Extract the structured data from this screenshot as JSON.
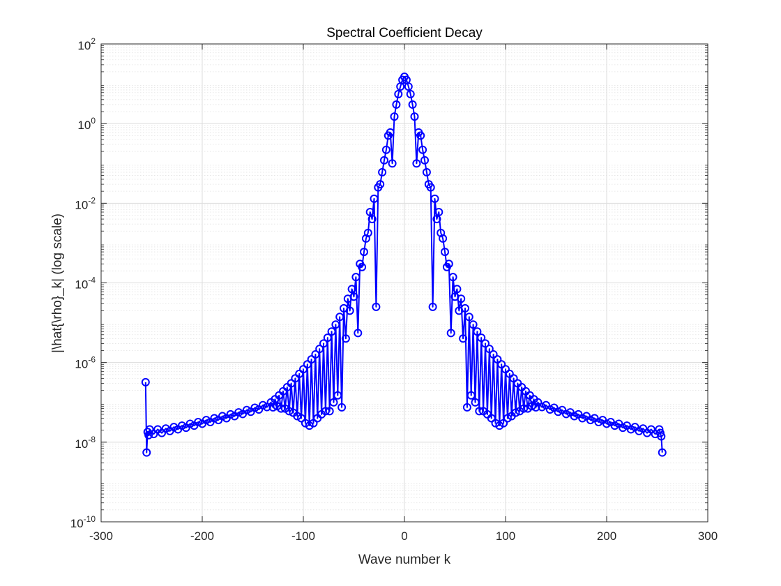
{
  "chart_data": {
    "type": "line",
    "title": "Spectral Coefficient Decay",
    "xlabel": "Wave number k",
    "ylabel": "|\\hat{\\rho}_k| (log scale)",
    "xlim": [
      -300,
      300
    ],
    "ylim": [
      1e-10,
      100
    ],
    "y_scale": "log",
    "grid": true,
    "minor_grid": true,
    "x_ticks": [
      {
        "value": -300,
        "label": "-300"
      },
      {
        "value": -200,
        "label": "-200"
      },
      {
        "value": -100,
        "label": "-100"
      },
      {
        "value": 0,
        "label": "0"
      },
      {
        "value": 100,
        "label": "100"
      },
      {
        "value": 200,
        "label": "200"
      },
      {
        "value": 300,
        "label": "300"
      }
    ],
    "y_ticks": [
      {
        "exp": 2,
        "base": "10",
        "sup": "2"
      },
      {
        "exp": 0,
        "base": "10",
        "sup": "0"
      },
      {
        "exp": -2,
        "base": "10",
        "sup": "-2"
      },
      {
        "exp": -4,
        "base": "10",
        "sup": "-4"
      },
      {
        "exp": -6,
        "base": "10",
        "sup": "-6"
      },
      {
        "exp": -8,
        "base": "10",
        "sup": "-8"
      },
      {
        "exp": -10,
        "base": "10",
        "sup": "-10"
      }
    ],
    "colors": {
      "series": "#0000ff",
      "grid": "#dcdcdc",
      "axis": "#262626"
    },
    "series": [
      {
        "marker": "circle",
        "points": [
          [
            -256,
            3.2e-07
          ],
          [
            -255,
            5.5e-09
          ],
          [
            -254,
            1.8e-08
          ],
          [
            -253,
            1.5e-08
          ],
          [
            -252,
            2.1e-08
          ],
          [
            -248,
            1.6e-08
          ],
          [
            -244,
            2.1e-08
          ],
          [
            -240,
            1.7e-08
          ],
          [
            -236,
            2.2e-08
          ],
          [
            -232,
            1.9e-08
          ],
          [
            -228,
            2.4e-08
          ],
          [
            -224,
            2.1e-08
          ],
          [
            -220,
            2.6e-08
          ],
          [
            -216,
            2.3e-08
          ],
          [
            -212,
            2.9e-08
          ],
          [
            -208,
            2.6e-08
          ],
          [
            -204,
            3.2e-08
          ],
          [
            -200,
            2.9e-08
          ],
          [
            -196,
            3.6e-08
          ],
          [
            -192,
            3.2e-08
          ],
          [
            -188,
            4e-08
          ],
          [
            -184,
            3.6e-08
          ],
          [
            -180,
            4.5e-08
          ],
          [
            -176,
            4e-08
          ],
          [
            -172,
            5e-08
          ],
          [
            -168,
            4.5e-08
          ],
          [
            -164,
            5.6e-08
          ],
          [
            -160,
            5.1e-08
          ],
          [
            -156,
            6.4e-08
          ],
          [
            -152,
            5.8e-08
          ],
          [
            -148,
            7.3e-08
          ],
          [
            -144,
            6.6e-08
          ],
          [
            -140,
            8.5e-08
          ],
          [
            -136,
            7.6e-08
          ],
          [
            -132,
            1e-07
          ],
          [
            -130,
            7.5e-08
          ],
          [
            -128,
            1.2e-07
          ],
          [
            -126,
            8e-08
          ],
          [
            -124,
            1.5e-07
          ],
          [
            -122,
            7e-08
          ],
          [
            -120,
            1.9e-07
          ],
          [
            -118,
            7e-08
          ],
          [
            -116,
            2.4e-07
          ],
          [
            -114,
            6e-08
          ],
          [
            -112,
            3e-07
          ],
          [
            -110,
            5.5e-08
          ],
          [
            -108,
            4e-07
          ],
          [
            -106,
            4.5e-08
          ],
          [
            -104,
            5.2e-07
          ],
          [
            -102,
            4e-08
          ],
          [
            -100,
            6.8e-07
          ],
          [
            -98,
            3e-08
          ],
          [
            -96,
            9e-07
          ],
          [
            -94,
            2.6e-08
          ],
          [
            -92,
            1.2e-06
          ],
          [
            -90,
            3e-08
          ],
          [
            -88,
            1.6e-06
          ],
          [
            -86,
            4e-08
          ],
          [
            -84,
            2.2e-06
          ],
          [
            -82,
            5e-08
          ],
          [
            -80,
            3e-06
          ],
          [
            -78,
            6e-08
          ],
          [
            -76,
            4.2e-06
          ],
          [
            -74,
            6e-08
          ],
          [
            -72,
            6e-06
          ],
          [
            -70,
            1e-07
          ],
          [
            -68,
            9e-06
          ],
          [
            -66,
            1.5e-07
          ],
          [
            -64,
            1.4e-05
          ],
          [
            -62,
            7.5e-08
          ],
          [
            -60,
            2.3e-05
          ],
          [
            -58,
            4e-06
          ],
          [
            -56,
            4e-05
          ],
          [
            -54,
            2e-05
          ],
          [
            -52,
            7e-05
          ],
          [
            -50,
            4.5e-05
          ],
          [
            -48,
            0.00014
          ],
          [
            -46,
            5.5e-06
          ],
          [
            -44,
            0.0003
          ],
          [
            -42,
            0.00025
          ],
          [
            -40,
            0.0006
          ],
          [
            -38,
            0.0013
          ],
          [
            -36,
            0.0018
          ],
          [
            -34,
            0.006
          ],
          [
            -32,
            0.004
          ],
          [
            -30,
            0.013
          ],
          [
            -28,
            2.5e-05
          ],
          [
            -26,
            0.025
          ],
          [
            -24,
            0.03
          ],
          [
            -22,
            0.06
          ],
          [
            -20,
            0.12
          ],
          [
            -18,
            0.22
          ],
          [
            -16,
            0.5
          ],
          [
            -14,
            0.6
          ],
          [
            -12,
            0.1
          ],
          [
            -10,
            1.5
          ],
          [
            -8,
            3.0
          ],
          [
            -6,
            5.5
          ],
          [
            -4,
            8.5
          ],
          [
            -2,
            12.5
          ],
          [
            0,
            15
          ],
          [
            2,
            12.5
          ],
          [
            4,
            8.5
          ],
          [
            6,
            5.5
          ],
          [
            8,
            3.0
          ],
          [
            10,
            1.5
          ],
          [
            12,
            0.1
          ],
          [
            14,
            0.6
          ],
          [
            16,
            0.5
          ],
          [
            18,
            0.22
          ],
          [
            20,
            0.12
          ],
          [
            22,
            0.06
          ],
          [
            24,
            0.03
          ],
          [
            26,
            0.025
          ],
          [
            28,
            2.5e-05
          ],
          [
            30,
            0.013
          ],
          [
            32,
            0.004
          ],
          [
            34,
            0.006
          ],
          [
            36,
            0.0018
          ],
          [
            38,
            0.0013
          ],
          [
            40,
            0.0006
          ],
          [
            42,
            0.00025
          ],
          [
            44,
            0.0003
          ],
          [
            46,
            5.5e-06
          ],
          [
            48,
            0.00014
          ],
          [
            50,
            4.5e-05
          ],
          [
            52,
            7e-05
          ],
          [
            54,
            2e-05
          ],
          [
            56,
            4e-05
          ],
          [
            58,
            4e-06
          ],
          [
            60,
            2.3e-05
          ],
          [
            62,
            7.5e-08
          ],
          [
            64,
            1.4e-05
          ],
          [
            66,
            1.5e-07
          ],
          [
            68,
            9e-06
          ],
          [
            70,
            1e-07
          ],
          [
            72,
            6e-06
          ],
          [
            74,
            6e-08
          ],
          [
            76,
            4.2e-06
          ],
          [
            78,
            6e-08
          ],
          [
            80,
            3e-06
          ],
          [
            82,
            5e-08
          ],
          [
            84,
            2.2e-06
          ],
          [
            86,
            4e-08
          ],
          [
            88,
            1.6e-06
          ],
          [
            90,
            3e-08
          ],
          [
            92,
            1.2e-06
          ],
          [
            94,
            2.6e-08
          ],
          [
            96,
            9e-07
          ],
          [
            98,
            3e-08
          ],
          [
            100,
            6.8e-07
          ],
          [
            102,
            4e-08
          ],
          [
            104,
            5.2e-07
          ],
          [
            106,
            4.5e-08
          ],
          [
            108,
            4e-07
          ],
          [
            110,
            5.5e-08
          ],
          [
            112,
            3e-07
          ],
          [
            114,
            6e-08
          ],
          [
            116,
            2.4e-07
          ],
          [
            118,
            7e-08
          ],
          [
            120,
            1.9e-07
          ],
          [
            122,
            7e-08
          ],
          [
            124,
            1.5e-07
          ],
          [
            126,
            8e-08
          ],
          [
            128,
            1.2e-07
          ],
          [
            130,
            7.5e-08
          ],
          [
            132,
            1e-07
          ],
          [
            136,
            7.6e-08
          ],
          [
            140,
            8.5e-08
          ],
          [
            144,
            6.6e-08
          ],
          [
            148,
            7.3e-08
          ],
          [
            152,
            5.8e-08
          ],
          [
            156,
            6.4e-08
          ],
          [
            160,
            5.1e-08
          ],
          [
            164,
            5.6e-08
          ],
          [
            168,
            4.5e-08
          ],
          [
            172,
            5e-08
          ],
          [
            176,
            4e-08
          ],
          [
            180,
            4.5e-08
          ],
          [
            184,
            3.6e-08
          ],
          [
            188,
            4e-08
          ],
          [
            192,
            3.2e-08
          ],
          [
            196,
            3.6e-08
          ],
          [
            200,
            2.9e-08
          ],
          [
            204,
            3.2e-08
          ],
          [
            208,
            2.6e-08
          ],
          [
            212,
            2.9e-08
          ],
          [
            216,
            2.3e-08
          ],
          [
            220,
            2.6e-08
          ],
          [
            224,
            2.1e-08
          ],
          [
            228,
            2.4e-08
          ],
          [
            232,
            1.9e-08
          ],
          [
            236,
            2.2e-08
          ],
          [
            240,
            1.7e-08
          ],
          [
            244,
            2.1e-08
          ],
          [
            248,
            1.6e-08
          ],
          [
            252,
            2.1e-08
          ],
          [
            253,
            1.7e-08
          ],
          [
            254,
            1.4e-08
          ],
          [
            255,
            5.5e-09
          ]
        ]
      }
    ]
  }
}
